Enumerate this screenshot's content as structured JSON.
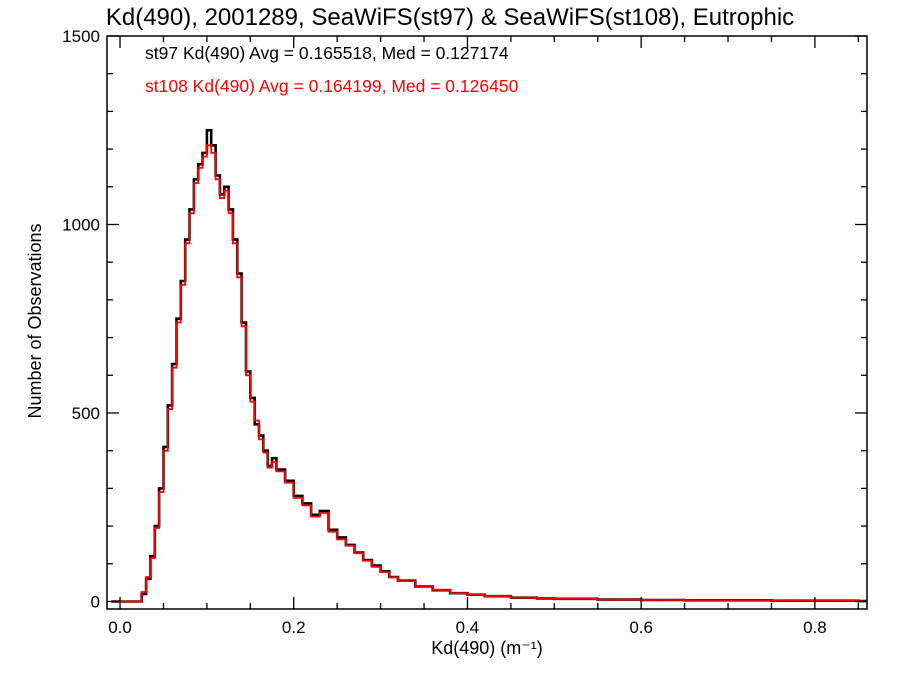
{
  "chart_data": {
    "type": "line",
    "title": "Kd(490), 2001289, SeaWiFS(st97) & SeaWiFS(st108), Eutrophic",
    "xlabel": "Kd(490) (m⁻¹)",
    "ylabel": "Number of Observations",
    "xlim": [
      -0.015,
      0.86
    ],
    "ylim": [
      -20,
      1500
    ],
    "x_ticks": [
      0.0,
      0.2,
      0.4,
      0.6,
      0.8
    ],
    "x_tick_labels": [
      "0.0",
      "0.2",
      "0.4",
      "0.6",
      "0.8"
    ],
    "y_ticks": [
      0,
      500,
      1000,
      1500
    ],
    "y_tick_labels": [
      "0",
      "500",
      "1000",
      "1500"
    ],
    "grid": false,
    "step": true,
    "annotations": [
      {
        "text": "st97 Kd(490) Avg = 0.165518, Med = 0.127174",
        "color": "#000000"
      },
      {
        "text": "st108 Kd(490) Avg = 0.164199, Med = 0.126450",
        "color": "#ff0000"
      }
    ],
    "series": [
      {
        "color": "#000000",
        "x": [
          -0.01,
          0.02,
          0.025,
          0.03,
          0.035,
          0.04,
          0.045,
          0.05,
          0.055,
          0.06,
          0.065,
          0.07,
          0.075,
          0.08,
          0.085,
          0.09,
          0.095,
          0.1,
          0.105,
          0.11,
          0.115,
          0.12,
          0.125,
          0.13,
          0.135,
          0.14,
          0.145,
          0.15,
          0.155,
          0.16,
          0.165,
          0.17,
          0.175,
          0.18,
          0.19,
          0.2,
          0.21,
          0.22,
          0.23,
          0.24,
          0.25,
          0.26,
          0.27,
          0.28,
          0.29,
          0.3,
          0.31,
          0.32,
          0.34,
          0.36,
          0.38,
          0.4,
          0.42,
          0.45,
          0.48,
          0.5,
          0.55,
          0.6,
          0.65,
          0.7,
          0.75,
          0.8,
          0.85
        ],
        "y": [
          0,
          0,
          20,
          60,
          120,
          200,
          300,
          410,
          520,
          630,
          750,
          850,
          960,
          1040,
          1120,
          1160,
          1190,
          1250,
          1210,
          1130,
          1080,
          1100,
          1040,
          960,
          870,
          740,
          610,
          540,
          470,
          440,
          400,
          360,
          380,
          350,
          320,
          280,
          260,
          230,
          240,
          190,
          170,
          150,
          130,
          110,
          95,
          80,
          65,
          55,
          40,
          30,
          22,
          18,
          14,
          10,
          8,
          7,
          5,
          4,
          3,
          3,
          2,
          2,
          1
        ]
      },
      {
        "color": "#ff0000",
        "x": [
          -0.01,
          0.02,
          0.025,
          0.03,
          0.035,
          0.04,
          0.045,
          0.05,
          0.055,
          0.06,
          0.065,
          0.07,
          0.075,
          0.08,
          0.085,
          0.09,
          0.095,
          0.1,
          0.105,
          0.11,
          0.115,
          0.12,
          0.125,
          0.13,
          0.135,
          0.14,
          0.145,
          0.15,
          0.155,
          0.16,
          0.165,
          0.17,
          0.175,
          0.18,
          0.19,
          0.2,
          0.21,
          0.22,
          0.23,
          0.24,
          0.25,
          0.26,
          0.27,
          0.28,
          0.29,
          0.3,
          0.31,
          0.32,
          0.34,
          0.36,
          0.38,
          0.4,
          0.42,
          0.45,
          0.48,
          0.5,
          0.55,
          0.6,
          0.65,
          0.7,
          0.75,
          0.8,
          0.85
        ],
        "y": [
          0,
          0,
          25,
          65,
          115,
          195,
          290,
          400,
          510,
          620,
          740,
          840,
          950,
          1030,
          1110,
          1150,
          1180,
          1210,
          1190,
          1120,
          1070,
          1090,
          1030,
          950,
          860,
          730,
          600,
          530,
          480,
          430,
          395,
          355,
          370,
          345,
          315,
          275,
          255,
          225,
          235,
          185,
          165,
          148,
          128,
          108,
          92,
          78,
          64,
          54,
          40,
          31,
          22,
          18,
          14,
          10,
          8,
          7,
          5,
          4,
          3,
          3,
          2,
          2,
          1
        ]
      }
    ]
  }
}
